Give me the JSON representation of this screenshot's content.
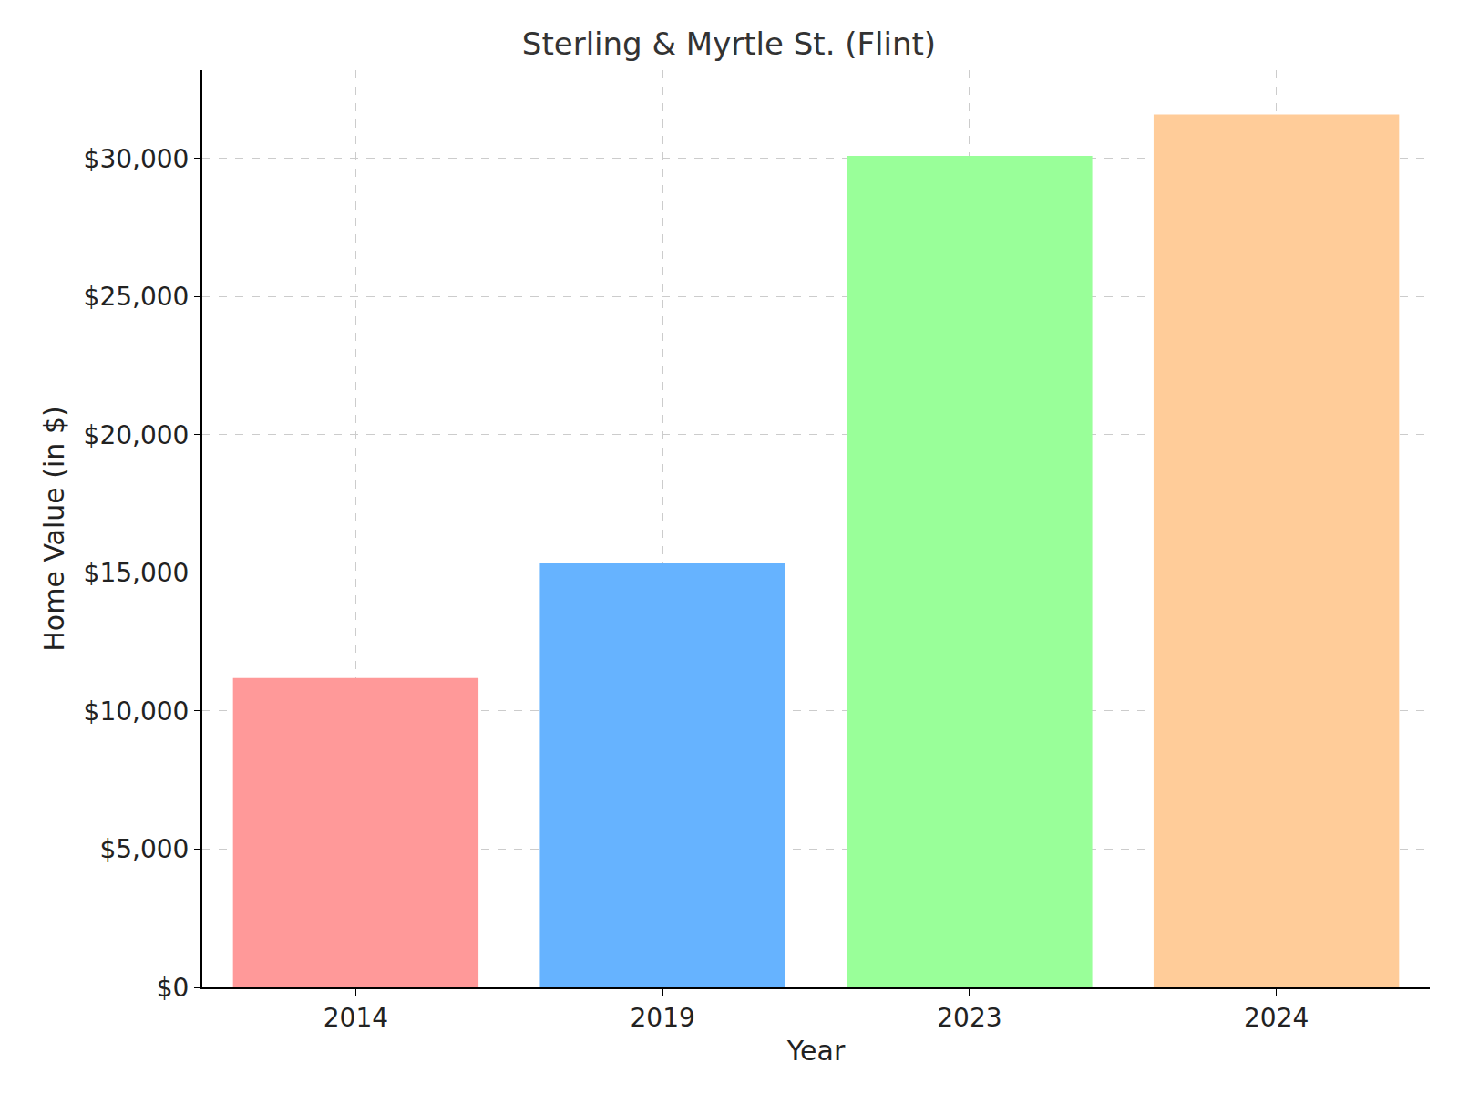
{
  "chart_data": {
    "type": "bar",
    "title": "Sterling & Myrtle St. (Flint)",
    "x_label": "Year",
    "y_label": "Home Value (in $)",
    "categories": [
      "2014",
      "2019",
      "2023",
      "2024"
    ],
    "values": [
      11200,
      15350,
      30100,
      31600
    ],
    "colors": [
      "#ff9999",
      "#66b3ff",
      "#99ff99",
      "#ffcc99"
    ],
    "ylim": [
      0,
      33200
    ],
    "yticks": [
      {
        "value": 0,
        "label": "$0"
      },
      {
        "value": 5000,
        "label": "$5,000"
      },
      {
        "value": 10000,
        "label": "$10,000"
      },
      {
        "value": 15000,
        "label": "$15,000"
      },
      {
        "value": 20000,
        "label": "$20,000"
      },
      {
        "value": 25000,
        "label": "$25,000"
      },
      {
        "value": 30000,
        "label": "$30,000"
      }
    ],
    "grid": true
  }
}
